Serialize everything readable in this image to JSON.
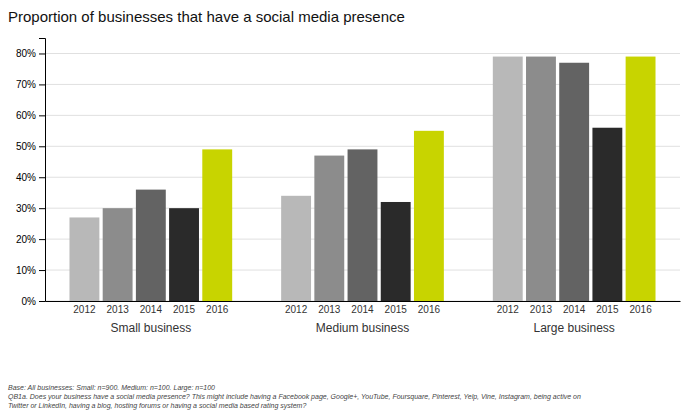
{
  "chart_data": {
    "type": "bar",
    "title": "Proportion of businesses that have a social media presence",
    "categories": [
      "Small business",
      "Medium business",
      "Large business"
    ],
    "series": [
      {
        "name": "2012",
        "color": "#b8b8b8",
        "values": [
          27,
          34,
          79
        ]
      },
      {
        "name": "2013",
        "color": "#8c8c8c",
        "values": [
          30,
          47,
          79
        ]
      },
      {
        "name": "2014",
        "color": "#636363",
        "values": [
          36,
          49,
          77
        ]
      },
      {
        "name": "2015",
        "color": "#2a2a2a",
        "values": [
          30,
          32,
          56
        ]
      },
      {
        "name": "2016",
        "color": "#c8d400",
        "values": [
          49,
          55,
          79
        ]
      }
    ],
    "ylim": [
      0,
      85
    ],
    "yticks": [
      {
        "value": 0,
        "label": "0%"
      },
      {
        "value": 10,
        "label": "10%"
      },
      {
        "value": 20,
        "label": "20%"
      },
      {
        "value": 30,
        "label": "30%"
      },
      {
        "value": 40,
        "label": "40%"
      },
      {
        "value": 50,
        "label": "50%"
      },
      {
        "value": 60,
        "label": "60%"
      },
      {
        "value": 70,
        "label": "70%"
      },
      {
        "value": 80,
        "label": "80%"
      }
    ],
    "grid": true,
    "annotations": [
      "Base: All businesses: Small: n=900. Medium: n=100. Large: n=100",
      "QB1a. Does your business have a social media presence? This might include having a Facebook page, Google+, YouTube, Foursquare, Pinterest, Yelp, Vine, Instagram, being active on",
      "Twitter or LinkedIn, having a blog, hosting forums or having a social media based rating system?"
    ]
  }
}
